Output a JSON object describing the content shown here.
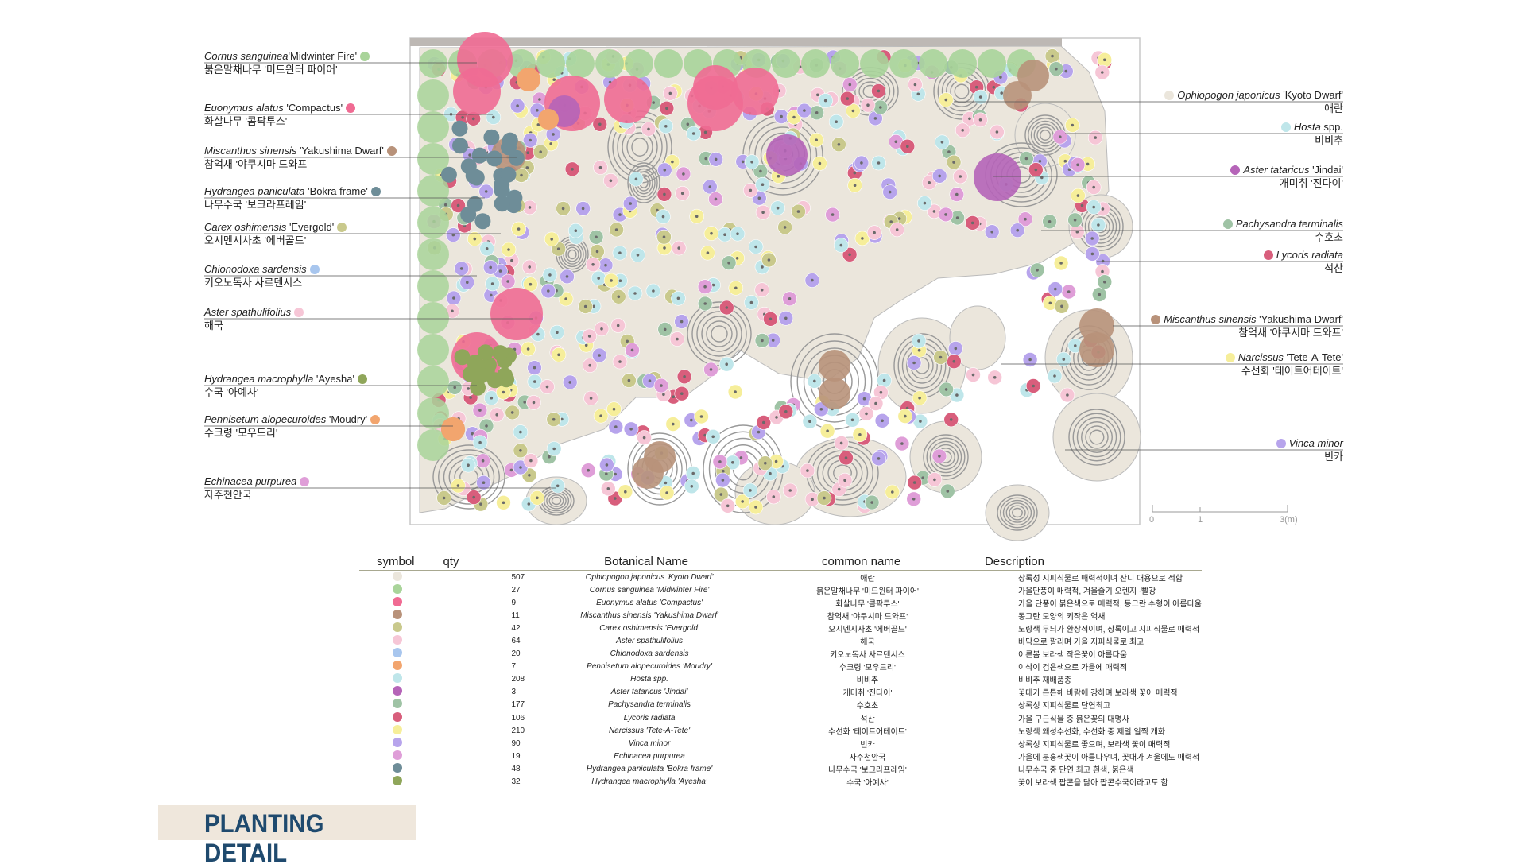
{
  "title": "PLANTING DETAIL",
  "colors": {
    "ophiopogon": "#ebe6dc",
    "cornus": "#a9d49a",
    "euonymus": "#f06b93",
    "miscanthus": "#b8927a",
    "carex": "#c9c98c",
    "aster_spath": "#f6c6d6",
    "chionodoxa": "#a8c6ee",
    "pennisetum": "#f2a56e",
    "hosta": "#bfe6ea",
    "aster_tat": "#b564b8",
    "pachysandra": "#9fc3a5",
    "lycoris": "#d85e7c",
    "narcissus": "#f6ee9a",
    "vinca": "#b7a4ec",
    "echinacea": "#df9ed8",
    "hydrangea_pan": "#6e8d98",
    "hydrangea_mac": "#8fa65a"
  },
  "labels_left": [
    {
      "bot": "Cornus sanguinea",
      "cv": "'Midwinter Fire'",
      "kr": "붉은말채나무 '미드윈터 파이어'",
      "color": "#a9d49a"
    },
    {
      "bot": "Euonymus alatus",
      "cv": " 'Compactus'",
      "kr": "화살나무 '콤팍투스'",
      "color": "#f06b93"
    },
    {
      "bot": "Miscanthus sinensis",
      "cv": " 'Yakushima Dwarf'",
      "kr": "참억새 '야쿠시마 드와프'",
      "color": "#b8927a"
    },
    {
      "bot": "Hydrangea paniculata",
      "cv": " 'Bokra frame'",
      "kr": "나무수국 '보크라프레임'",
      "color": "#6e8d98"
    },
    {
      "bot": "Carex oshimensis",
      "cv": " 'Evergold'",
      "kr": "오시멘시사초 '에버골드'",
      "color": "#c9c98c"
    },
    {
      "bot": "Chionodoxa sardensis",
      "cv": "",
      "kr": "키오노독사 사르덴시스",
      "color": "#a8c6ee"
    },
    {
      "bot": "Aster spathulifolius",
      "cv": "",
      "kr": "해국",
      "color": "#f6c6d6"
    },
    {
      "bot": "Hydrangea macrophylla",
      "cv": " 'Ayesha'",
      "kr": "수국 '아예사'",
      "color": "#8fa65a"
    },
    {
      "bot": "Pennisetum alopecuroides",
      "cv": " 'Moudry'",
      "kr": "수크령 '모우드리'",
      "color": "#f2a56e"
    },
    {
      "bot": "Echinacea purpurea",
      "cv": "",
      "kr": "자주천안국",
      "color": "#df9ed8"
    }
  ],
  "labels_right": [
    {
      "bot": "Ophiopogon japonicus",
      "cv": " 'Kyoto Dwarf'",
      "kr": "애란",
      "color": "#ebe6dc"
    },
    {
      "bot": "Hosta",
      "cv": " spp.",
      "kr": "비비추",
      "color": "#bfe6ea"
    },
    {
      "bot": "Aster tataricus",
      "cv": " 'Jindai'",
      "kr": "개미취 '진다이'",
      "color": "#b564b8"
    },
    {
      "bot": "Pachysandra terminalis",
      "cv": "",
      "kr": "수호초",
      "color": "#9fc3a5"
    },
    {
      "bot": "Lycoris radiata",
      "cv": "",
      "kr": "석산",
      "color": "#d85e7c"
    },
    {
      "bot": "Miscanthus sinensis",
      "cv": " 'Yakushima Dwarf'",
      "kr": "참억새 '야쿠시마 드와프'",
      "color": "#b8927a"
    },
    {
      "bot": "Narcissus",
      "cv": " 'Tete-A-Tete'",
      "kr": "수선화 '테이트어테이트'",
      "color": "#f6ee9a"
    },
    {
      "bot": "Vinca minor",
      "cv": "",
      "kr": "빈카",
      "color": "#b7a4ec"
    }
  ],
  "scale": {
    "t0": "0",
    "t1": "1",
    "t3": "3(m)"
  },
  "table": {
    "headers": [
      "symbol",
      "qty",
      "Botanical Name",
      "common name",
      "Description"
    ],
    "rows": [
      {
        "color": "#ebe6dc",
        "qty": "507",
        "name": "Ophiopogon japonicus 'Kyoto Dwarf'",
        "common": "애란",
        "desc": "상록성 지피식물로 매력적이며 잔디 대용으로 적합"
      },
      {
        "color": "#a9d49a",
        "qty": "27",
        "name": "Cornus sanguinea 'Midwinter Fire'",
        "common": "붉은말채나무 '미드윈터 파이어'",
        "desc": "가을단풍이 매력적, 겨울줄기 오렌지~빨강"
      },
      {
        "color": "#f06b93",
        "qty": "9",
        "name": "Euonymus alatus 'Compactus'",
        "common": "화살나무 '콤팍투스'",
        "desc": "가을 단풍이 붉은색으로 매력적, 동그란 수형이 아름다움"
      },
      {
        "color": "#b8927a",
        "qty": "11",
        "name": "Miscanthus sinensis 'Yakushima Dwarf'",
        "common": "참억새 '야쿠시마 드와프'",
        "desc": "동그란 모양의 키작은 억새"
      },
      {
        "color": "#c9c98c",
        "qty": "42",
        "name": "Carex oshimensis 'Evergold'",
        "common": "오시멘시사초 '에버골드'",
        "desc": "노랑색 무늬가 환상적이며, 상록이고 지피식물로 매력적"
      },
      {
        "color": "#f6c6d6",
        "qty": "64",
        "name": "Aster spathulifolius",
        "common": "해국",
        "desc": "바닥으로 깔리며 가을 지피식물로 최고"
      },
      {
        "color": "#a8c6ee",
        "qty": "20",
        "name": "Chionodoxa sardensis",
        "common": "키오노독사 사르덴시스",
        "desc": "이른봄 보라색 작은꽃이 아름다움"
      },
      {
        "color": "#f2a56e",
        "qty": "7",
        "name": "Pennisetum alopecuroides 'Moudry'",
        "common": "수크령 '모우드리'",
        "desc": "이삭이 검은색으로 가을에 매력적"
      },
      {
        "color": "#bfe6ea",
        "qty": "208",
        "name": "Hosta spp.",
        "common": "비비추",
        "desc": "비비추 재배품종"
      },
      {
        "color": "#b564b8",
        "qty": "3",
        "name": "Aster tataricus 'Jindai'",
        "common": "개미취 '진다이'",
        "desc": "꽃대가 튼튼해 바람에 강하며 보라색 꽃이 매력적"
      },
      {
        "color": "#9fc3a5",
        "qty": "177",
        "name": "Pachysandra terminalis",
        "common": "수호초",
        "desc": "상록성 지피식물로 단연최고"
      },
      {
        "color": "#d85e7c",
        "qty": "106",
        "name": "Lycoris radiata",
        "common": "석산",
        "desc": "가을 구근식물 중 붉은꽃의 대명사"
      },
      {
        "color": "#f6ee9a",
        "qty": "210",
        "name": "Narcissus 'Tete-A-Tete'",
        "common": "수선화 '테이트어테이트'",
        "desc": "노랑색 왜성수선화, 수선화 중 제일 일찍 개화"
      },
      {
        "color": "#b7a4ec",
        "qty": "90",
        "name": "Vinca minor",
        "common": "빈카",
        "desc": "상록성 지피식물로 좋으며, 보라색 꽃이 매력적"
      },
      {
        "color": "#df9ed8",
        "qty": "19",
        "name": "Echinacea purpurea",
        "common": "자주천안국",
        "desc": "가을에 분홍색꽃이 아름다우며, 꽃대가 겨울에도 매력적"
      },
      {
        "color": "#6e8d98",
        "qty": "48",
        "name": "Hydrangea paniculata 'Bokra frame'",
        "common": "나무수국 '보크라프레임'",
        "desc": "나무수국 중 단연 최고 흰색, 붉은색"
      },
      {
        "color": "#8fa65a",
        "qty": "32",
        "name": "Hydrangea macrophylla 'Ayesha'",
        "common": "수국 '아예사'",
        "desc": "꽃이 보라색 팝콘을 닮아 팝콘수국이라고도 함"
      }
    ]
  }
}
